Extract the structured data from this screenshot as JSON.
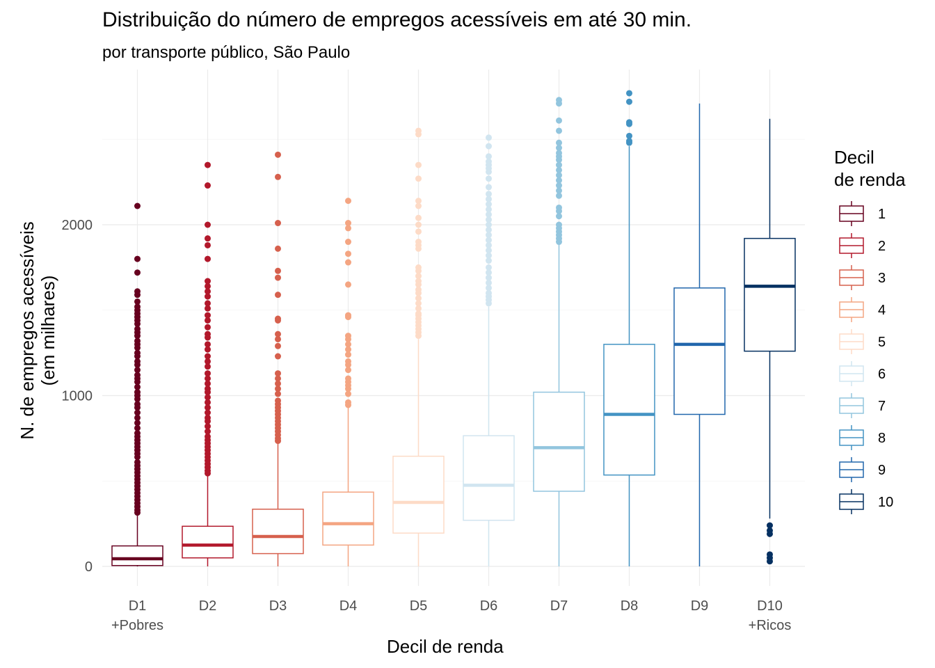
{
  "chart_data": {
    "type": "box",
    "title": "Distribuição do número de empregos acessíveis em até 30 min.",
    "subtitle": "por transporte público, São Paulo",
    "xlabel": "Decil de renda",
    "ylabel_line1": "N. de empregos acessíveis",
    "ylabel_line2": "(em milhares)",
    "ylim": [
      -110,
      2800
    ],
    "yticks": [
      0,
      1000,
      2000
    ],
    "ytick_labels": [
      "0",
      "1000",
      "2000"
    ],
    "grid": true,
    "legend_position": "right",
    "legend_title_line1": "Decil",
    "legend_title_line2": "de renda",
    "categories": [
      {
        "label": "D1",
        "sublabel": "+Pobres",
        "legend": "1",
        "color": "#67001f",
        "q1": 5,
        "median": 45,
        "q3": 120,
        "whisker_low": 0,
        "whisker_high": 300,
        "outliers": [
          2110,
          1800,
          1720,
          1610,
          1590,
          1550,
          1520,
          1500,
          1480,
          1460,
          1440,
          1420,
          1390,
          1370,
          1350,
          1320,
          1300,
          1280,
          1250,
          1230,
          1200,
          1180,
          1150,
          1120,
          1100,
          1080,
          1050,
          1020,
          1000,
          980,
          950,
          930,
          900,
          870,
          840,
          810,
          780,
          760,
          740,
          720,
          700,
          680,
          660,
          640,
          610,
          590,
          570,
          550,
          530,
          510,
          490,
          470,
          450,
          430,
          410,
          390,
          370,
          350,
          330,
          315
        ]
      },
      {
        "label": "D2",
        "sublabel": "",
        "legend": "2",
        "color": "#b2182b",
        "q1": 50,
        "median": 125,
        "q3": 235,
        "whisker_low": 0,
        "whisker_high": 530,
        "outliers": [
          2350,
          2230,
          2000,
          1920,
          1880,
          1800,
          1670,
          1640,
          1610,
          1580,
          1540,
          1510,
          1470,
          1440,
          1400,
          1360,
          1340,
          1300,
          1270,
          1230,
          1200,
          1170,
          1130,
          1100,
          1070,
          1040,
          1020,
          990,
          960,
          930,
          900,
          870,
          850,
          820,
          790,
          760,
          740,
          720,
          700,
          680,
          660,
          640,
          620,
          600,
          580,
          560,
          545
        ]
      },
      {
        "label": "D3",
        "sublabel": "",
        "legend": "3",
        "color": "#d6604d",
        "q1": 75,
        "median": 175,
        "q3": 335,
        "whisker_low": 0,
        "whisker_high": 720,
        "outliers": [
          2410,
          2280,
          2010,
          1860,
          1730,
          1690,
          1590,
          1450,
          1440,
          1360,
          1330,
          1290,
          1230,
          1130,
          1100,
          1070,
          1040,
          1010,
          970,
          950,
          930,
          910,
          890,
          870,
          850,
          830,
          810,
          790,
          770,
          750,
          735
        ]
      },
      {
        "label": "D4",
        "sublabel": "",
        "legend": "4",
        "color": "#f4a582",
        "q1": 125,
        "median": 250,
        "q3": 435,
        "whisker_low": 0,
        "whisker_high": 930,
        "outliers": [
          2140,
          2010,
          1980,
          1900,
          1830,
          1780,
          1650,
          1470,
          1460,
          1350,
          1330,
          1300,
          1270,
          1240,
          1200,
          1180,
          1150,
          1100,
          1080,
          1060,
          1040,
          1010,
          960,
          945
        ]
      },
      {
        "label": "D5",
        "sublabel": "",
        "legend": "5",
        "color": "#fddbc7",
        "q1": 195,
        "median": 375,
        "q3": 645,
        "whisker_low": 0,
        "whisker_high": 1330,
        "outliers": [
          2550,
          2530,
          2350,
          2270,
          2140,
          2110,
          2040,
          2000,
          1960,
          1900,
          1880,
          1860,
          1750,
          1730,
          1700,
          1670,
          1650,
          1620,
          1600,
          1570,
          1540,
          1510,
          1480,
          1470,
          1450,
          1430,
          1410,
          1390,
          1370,
          1350
        ]
      },
      {
        "label": "D6",
        "sublabel": "",
        "legend": "6",
        "color": "#d1e5f0",
        "q1": 270,
        "median": 475,
        "q3": 765,
        "whisker_low": 0,
        "whisker_high": 1520,
        "outliers": [
          2510,
          2460,
          2400,
          2370,
          2350,
          2330,
          2310,
          2270,
          2220,
          2180,
          2150,
          2120,
          2090,
          2060,
          2030,
          2000,
          1970,
          1940,
          1910,
          1880,
          1850,
          1820,
          1790,
          1750,
          1720,
          1690,
          1660,
          1630,
          1600,
          1580,
          1560,
          1540
        ]
      },
      {
        "label": "D7",
        "sublabel": "",
        "legend": "7",
        "color": "#92c5de",
        "q1": 440,
        "median": 695,
        "q3": 1020,
        "whisker_low": 0,
        "whisker_high": 1890,
        "outliers": [
          2730,
          2710,
          2610,
          2550,
          2480,
          2450,
          2420,
          2400,
          2380,
          2350,
          2320,
          2290,
          2260,
          2230,
          2200,
          2170,
          2100,
          2080,
          2050,
          2000,
          1980,
          1960,
          1940,
          1920,
          1900
        ]
      },
      {
        "label": "D8",
        "sublabel": "",
        "legend": "8",
        "color": "#4393c3",
        "q1": 535,
        "median": 890,
        "q3": 1300,
        "whisker_low": 0,
        "whisker_high": 2460,
        "outliers": [
          2770,
          2720,
          2600,
          2590,
          2520,
          2490,
          2480
        ]
      },
      {
        "label": "D9",
        "sublabel": "",
        "legend": "9",
        "color": "#2166ac",
        "q1": 890,
        "median": 1300,
        "q3": 1630,
        "whisker_low": 0,
        "whisker_high": 2710,
        "outliers": []
      },
      {
        "label": "D10",
        "sublabel": "+Ricos",
        "legend": "10",
        "color": "#053061",
        "q1": 1260,
        "median": 1640,
        "q3": 1920,
        "whisker_low": 280,
        "whisker_high": 2620,
        "outliers": [
          240,
          210,
          190,
          70,
          50,
          30
        ]
      }
    ]
  }
}
